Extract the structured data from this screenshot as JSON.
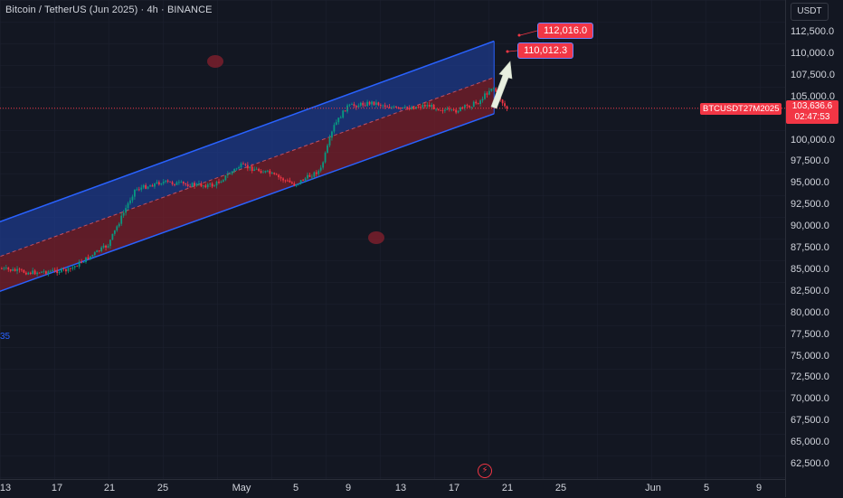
{
  "header": {
    "title": "Bitcoin / TetherUS (Jun 2025) · 4h · BINANCE"
  },
  "currency_button": {
    "label": "USDT"
  },
  "price_axis": {
    "ticks": [
      "112,500.0",
      "110,000.0",
      "107,500.0",
      "105,000.0",
      "100,000.0",
      "97,500.0",
      "95,000.0",
      "92,500.0",
      "90,000.0",
      "87,500.0",
      "85,000.0",
      "82,500.0",
      "80,000.0",
      "77,500.0",
      "75,000.0",
      "72,500.0",
      "70,000.0",
      "67,500.0",
      "65,000.0",
      "62,500.0"
    ],
    "tick_values": [
      112500,
      110000,
      107500,
      105000,
      100000,
      97500,
      95000,
      92500,
      90000,
      87500,
      85000,
      82500,
      80000,
      77500,
      75000,
      72500,
      70000,
      67500,
      65000,
      62500
    ]
  },
  "time_axis": {
    "ticks": [
      "13",
      "17",
      "21",
      "25",
      "May",
      "5",
      "9",
      "13",
      "17",
      "21",
      "25",
      "Jun",
      "5",
      "9"
    ]
  },
  "last_price": {
    "symbol": "BTCUSDT27M2025",
    "price": "103,636.6",
    "countdown": "02:47:53",
    "color": "#f23645"
  },
  "callouts": [
    {
      "text": "112,016.0"
    },
    {
      "text": "110,012.3"
    }
  ],
  "left_edge_label": "35",
  "icons": {
    "flash": "lightning-icon"
  },
  "colors": {
    "background": "#131722",
    "up_candle": "#089981",
    "down_candle": "#f23645",
    "channel_line": "#2962ff",
    "channel_upper_fill": "#1e3a8a",
    "channel_lower_fill": "#7a1f2b",
    "arrow": "#e8efe0"
  },
  "chart_data": {
    "type": "candlestick",
    "title": "Bitcoin / TetherUS (Jun 2025) · 4h · BINANCE",
    "ylim": [
      61500,
      114200
    ],
    "path": [
      {
        "x": "Apr 9",
        "price": 85500
      },
      {
        "x": "Apr 12",
        "price": 85200
      },
      {
        "x": "Apr 15",
        "price": 84600
      },
      {
        "x": "Apr 18",
        "price": 84900
      },
      {
        "x": "Apr 21",
        "price": 87800
      },
      {
        "x": "Apr 23",
        "price": 94200
      },
      {
        "x": "Apr 25",
        "price": 95100
      },
      {
        "x": "Apr 27",
        "price": 94800
      },
      {
        "x": "Apr 29",
        "price": 94700
      },
      {
        "x": "May 1",
        "price": 97000
      },
      {
        "x": "May 3",
        "price": 96200
      },
      {
        "x": "May 5",
        "price": 94800
      },
      {
        "x": "May 7",
        "price": 96500
      },
      {
        "x": "May 8",
        "price": 101500
      },
      {
        "x": "May 9",
        "price": 103800
      },
      {
        "x": "May 11",
        "price": 104300
      },
      {
        "x": "May 13",
        "price": 103500
      },
      {
        "x": "May 15",
        "price": 104000
      },
      {
        "x": "May 17",
        "price": 103200
      },
      {
        "x": "May 19",
        "price": 104400
      },
      {
        "x": "May 20",
        "price": 106200
      },
      {
        "x": "May 21",
        "price": 103637
      }
    ],
    "channel": {
      "upper": [
        {
          "x": "Apr 8",
          "y": 88000
        },
        {
          "x": "May 20",
          "y": 111400
        }
      ],
      "lower": [
        {
          "x": "Apr 8",
          "y": 80000
        },
        {
          "x": "May 20",
          "y": 103000
        }
      ]
    },
    "last_price": 103636.6
  }
}
